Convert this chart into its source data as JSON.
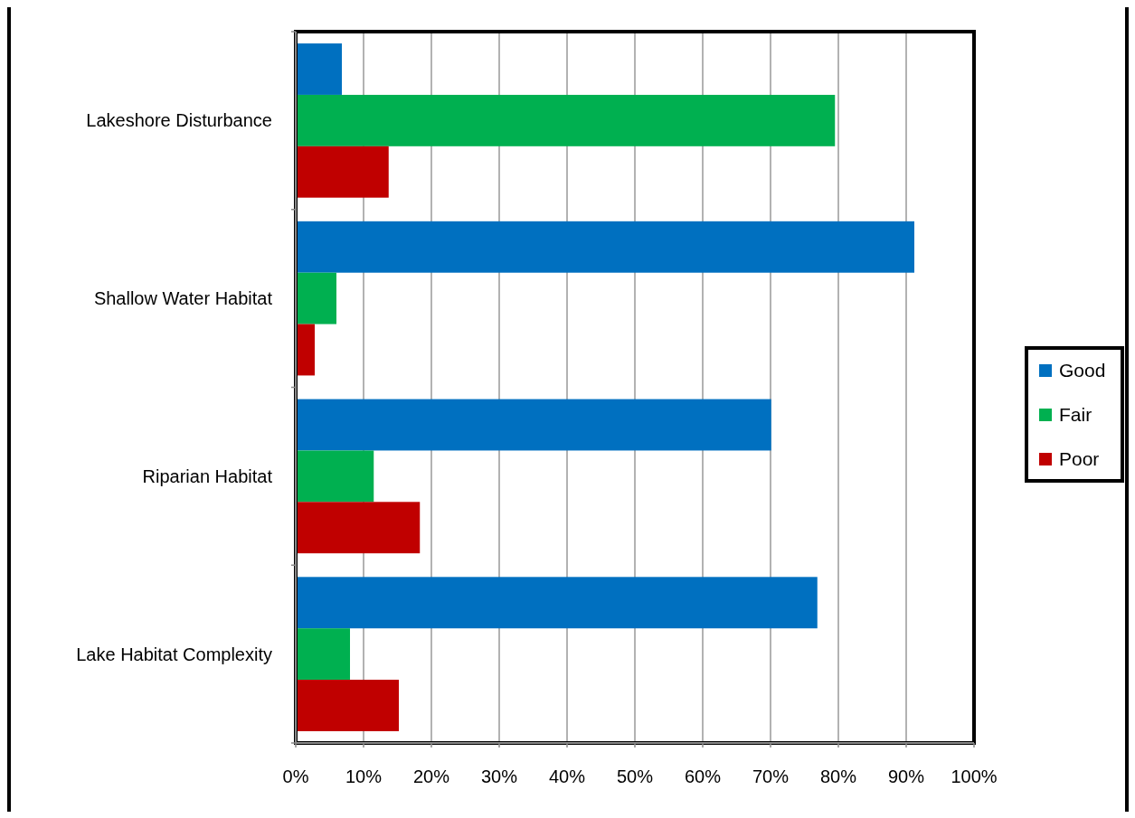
{
  "chart_data": {
    "type": "bar",
    "orientation": "horizontal",
    "categories": [
      "Lakeshore Disturbance",
      "Shallow Water Habitat",
      "Riparian Habitat",
      "Lake Habitat Complexity"
    ],
    "series": [
      {
        "name": "Good",
        "color": "#0070c0",
        "values": [
          6.8,
          91.2,
          70.1,
          76.9
        ]
      },
      {
        "name": "Fair",
        "color": "#00b050",
        "values": [
          79.5,
          6.0,
          11.5,
          8.0
        ]
      },
      {
        "name": "Poor",
        "color": "#c00000",
        "values": [
          13.7,
          2.8,
          18.3,
          15.2
        ]
      }
    ],
    "xlim": [
      0,
      100
    ],
    "xticks": [
      {
        "value": 0,
        "label": "0%"
      },
      {
        "value": 10,
        "label": "10%"
      },
      {
        "value": 20,
        "label": "20%"
      },
      {
        "value": 30,
        "label": "30%"
      },
      {
        "value": 40,
        "label": "40%"
      },
      {
        "value": 50,
        "label": "50%"
      },
      {
        "value": 60,
        "label": "60%"
      },
      {
        "value": 70,
        "label": "70%"
      },
      {
        "value": 80,
        "label": "80%"
      },
      {
        "value": 90,
        "label": "90%"
      },
      {
        "value": 100,
        "label": "100%"
      }
    ],
    "grid": "x",
    "legend": "right"
  }
}
